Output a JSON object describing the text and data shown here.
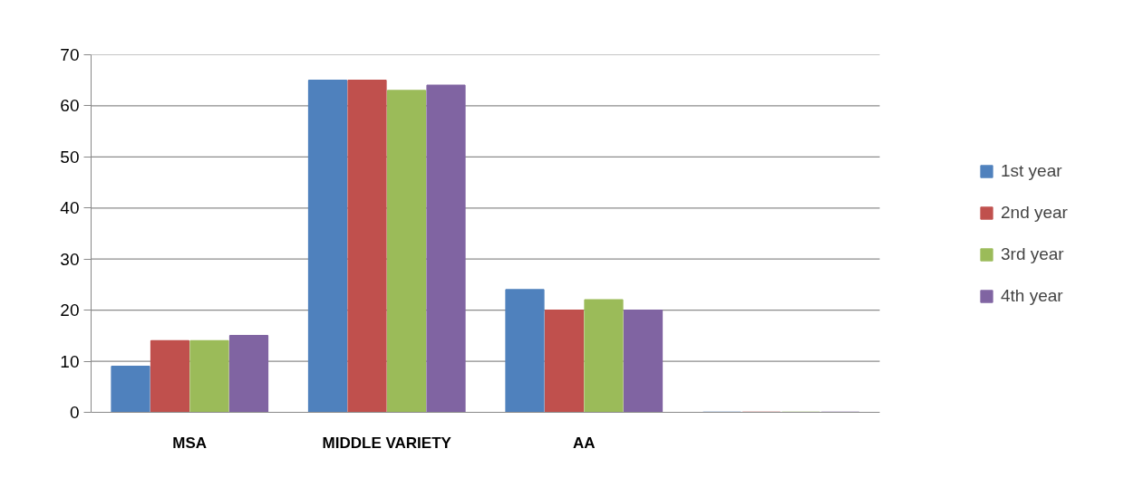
{
  "chart_data": {
    "type": "bar",
    "categories": [
      "MSA",
      "MIDDLE VARIETY",
      "AA",
      null
    ],
    "series": [
      {
        "name": "1st year",
        "color": "#4f81bd",
        "values": [
          9,
          65,
          24,
          0
        ]
      },
      {
        "name": "2nd year",
        "color": "#c0504d",
        "values": [
          14,
          65,
          20,
          0
        ]
      },
      {
        "name": "3rd year",
        "color": "#9bbb59",
        "values": [
          14,
          63,
          22,
          0
        ]
      },
      {
        "name": "4th year",
        "color": "#8064a2",
        "values": [
          15,
          64,
          20,
          0
        ]
      }
    ],
    "ylim": [
      0,
      70
    ],
    "yticks": [
      0,
      10,
      20,
      30,
      40,
      50,
      60,
      70
    ],
    "grid": "y",
    "legend": "right"
  }
}
